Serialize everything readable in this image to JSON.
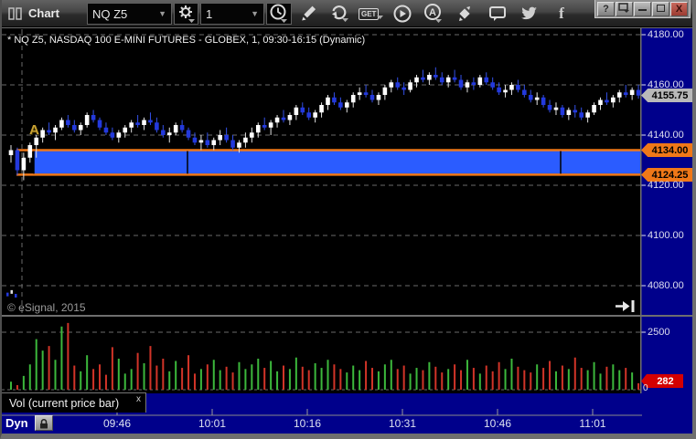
{
  "window": {
    "title": "Chart",
    "help_label": "?",
    "controls": [
      "help",
      "popout",
      "minimize",
      "maximize",
      "close"
    ]
  },
  "toolbar": {
    "symbol_value": "NQ Z5",
    "interval_value": "1",
    "get_label": "GET",
    "icons": [
      "symbol-settings-gear-icon",
      "interval-clock-icon",
      "pencil-draw-icon",
      "share-refresh-icon",
      "get-icon",
      "play-icon",
      "a-circle-icon",
      "trade-diamond-icon",
      "chat-icon",
      "twitter-icon",
      "facebook-icon"
    ]
  },
  "chart": {
    "header": "* NQ Z5, NASDAQ 100 E-MINI FUTURES - GLOBEX, 1, 09:30-16:15 (Dynamic)",
    "watermark": "© eSignal, 2015",
    "annotation": "A"
  },
  "volume_tab": {
    "label": "Vol (current price bar)",
    "close_label": "x"
  },
  "time_axis": {
    "mode_label": "Dyn",
    "labels": [
      "09:46",
      "10:01",
      "10:16",
      "10:31",
      "10:46",
      "11:01"
    ]
  },
  "chart_data": {
    "type": "candlestick",
    "symbol": "NQ Z5",
    "description": "NASDAQ 100 E-MINI FUTURES - GLOBEX",
    "interval_minutes": 1,
    "session": "09:30-16:15 (Dynamic)",
    "price_axis": {
      "ticks": [
        4180,
        4160,
        4140,
        4120,
        4100,
        4080
      ],
      "current_price": "4155.75",
      "zone_top_label": "4134.00",
      "zone_bottom_label": "4124.25"
    },
    "volume_axis": {
      "ticks": [
        2500
      ],
      "zero_label": "0",
      "current_volume": "282"
    },
    "zone": {
      "top": 4134.0,
      "bottom": 4124.25
    },
    "prior_session_marks": [
      4076.5,
      4077.5,
      4076.0
    ],
    "candles": [
      [
        4132,
        4136,
        4129,
        4134
      ],
      [
        4134,
        4135,
        4124,
        4126
      ],
      [
        4126,
        4133,
        4122,
        4131
      ],
      [
        4131,
        4137,
        4129,
        4136
      ],
      [
        4136,
        4140,
        4131,
        4139
      ],
      [
        4139,
        4143,
        4137,
        4142
      ],
      [
        4142,
        4145,
        4140,
        4141
      ],
      [
        4141,
        4144,
        4138,
        4143
      ],
      [
        4143,
        4147,
        4142,
        4146
      ],
      [
        4146,
        4148,
        4143,
        4144
      ],
      [
        4144,
        4146,
        4141,
        4142
      ],
      [
        4142,
        4145,
        4140,
        4144
      ],
      [
        4144,
        4149,
        4143,
        4148
      ],
      [
        4148,
        4150,
        4145,
        4146
      ],
      [
        4146,
        4147,
        4142,
        4143
      ],
      [
        4143,
        4145,
        4140,
        4141
      ],
      [
        4141,
        4143,
        4138,
        4139
      ],
      [
        4139,
        4142,
        4137,
        4141
      ],
      [
        4141,
        4144,
        4139,
        4143
      ],
      [
        4143,
        4146,
        4141,
        4145
      ],
      [
        4145,
        4148,
        4143,
        4144
      ],
      [
        4144,
        4147,
        4142,
        4146
      ],
      [
        4146,
        4149,
        4144,
        4145
      ],
      [
        4145,
        4147,
        4141,
        4142
      ],
      [
        4142,
        4144,
        4139,
        4140
      ],
      [
        4140,
        4143,
        4137,
        4141
      ],
      [
        4141,
        4145,
        4140,
        4144
      ],
      [
        4144,
        4146,
        4141,
        4142
      ],
      [
        4142,
        4143,
        4138,
        4139
      ],
      [
        4139,
        4141,
        4136,
        4137
      ],
      [
        4137,
        4140,
        4134,
        4138
      ],
      [
        4138,
        4141,
        4135,
        4136
      ],
      [
        4136,
        4139,
        4134,
        4138
      ],
      [
        4138,
        4142,
        4136,
        4140
      ],
      [
        4140,
        4143,
        4137,
        4138
      ],
      [
        4138,
        4140,
        4134,
        4135
      ],
      [
        4135,
        4138,
        4133,
        4137
      ],
      [
        4137,
        4141,
        4135,
        4139
      ],
      [
        4139,
        4143,
        4137,
        4141
      ],
      [
        4141,
        4145,
        4139,
        4144
      ],
      [
        4144,
        4147,
        4142,
        4143
      ],
      [
        4143,
        4146,
        4140,
        4145
      ],
      [
        4145,
        4148,
        4143,
        4147
      ],
      [
        4147,
        4150,
        4145,
        4146
      ],
      [
        4146,
        4149,
        4144,
        4148
      ],
      [
        4148,
        4152,
        4146,
        4151
      ],
      [
        4151,
        4153,
        4148,
        4149
      ],
      [
        4149,
        4151,
        4146,
        4147
      ],
      [
        4147,
        4150,
        4145,
        4149
      ],
      [
        4149,
        4153,
        4147,
        4152
      ],
      [
        4152,
        4156,
        4150,
        4155
      ],
      [
        4155,
        4157,
        4152,
        4153
      ],
      [
        4153,
        4155,
        4150,
        4151
      ],
      [
        4151,
        4154,
        4149,
        4153
      ],
      [
        4153,
        4157,
        4151,
        4156
      ],
      [
        4156,
        4159,
        4154,
        4157
      ],
      [
        4157,
        4160,
        4155,
        4156
      ],
      [
        4156,
        4158,
        4153,
        4154
      ],
      [
        4154,
        4157,
        4152,
        4156
      ],
      [
        4156,
        4160,
        4154,
        4159
      ],
      [
        4159,
        4162,
        4157,
        4161
      ],
      [
        4161,
        4163,
        4158,
        4159
      ],
      [
        4159,
        4161,
        4156,
        4158
      ],
      [
        4158,
        4162,
        4157,
        4161
      ],
      [
        4161,
        4164,
        4159,
        4163
      ],
      [
        4163,
        4166,
        4161,
        4162
      ],
      [
        4162,
        4165,
        4160,
        4164
      ],
      [
        4164,
        4167,
        4162,
        4163
      ],
      [
        4163,
        4165,
        4160,
        4161
      ],
      [
        4161,
        4164,
        4159,
        4163
      ],
      [
        4163,
        4166,
        4161,
        4162
      ],
      [
        4162,
        4164,
        4158,
        4159
      ],
      [
        4159,
        4162,
        4157,
        4161
      ],
      [
        4161,
        4163,
        4158,
        4160
      ],
      [
        4160,
        4164,
        4159,
        4163
      ],
      [
        4163,
        4165,
        4160,
        4161
      ],
      [
        4161,
        4163,
        4158,
        4159
      ],
      [
        4159,
        4161,
        4156,
        4157
      ],
      [
        4157,
        4160,
        4155,
        4158
      ],
      [
        4158,
        4161,
        4156,
        4160
      ],
      [
        4160,
        4162,
        4157,
        4158
      ],
      [
        4158,
        4160,
        4155,
        4156
      ],
      [
        4156,
        4158,
        4153,
        4154
      ],
      [
        4154,
        4157,
        4152,
        4155
      ],
      [
        4155,
        4156,
        4151,
        4152
      ],
      [
        4152,
        4154,
        4149,
        4150
      ],
      [
        4150,
        4153,
        4148,
        4151
      ],
      [
        4151,
        4152,
        4147,
        4148
      ],
      [
        4148,
        4151,
        4146,
        4150
      ],
      [
        4150,
        4152,
        4147,
        4149
      ],
      [
        4149,
        4151,
        4146,
        4147
      ],
      [
        4147,
        4150,
        4145,
        4149
      ],
      [
        4149,
        4153,
        4148,
        4152
      ],
      [
        4152,
        4155,
        4150,
        4154
      ],
      [
        4154,
        4157,
        4152,
        4153
      ],
      [
        4153,
        4156,
        4151,
        4155
      ],
      [
        4155,
        4158,
        4153,
        4157
      ],
      [
        4157,
        4160,
        4155,
        4156
      ],
      [
        4156,
        4159,
        4154,
        4158
      ],
      [
        4158,
        4160,
        4154.5,
        4155.75
      ]
    ],
    "volumes": [
      350,
      200,
      600,
      1100,
      2200,
      1700,
      1900,
      1300,
      2750,
      2900,
      1050,
      800,
      1500,
      900,
      1100,
      650,
      1850,
      1350,
      700,
      900,
      1600,
      1150,
      1900,
      1050,
      1350,
      800,
      1250,
      950,
      1500,
      700,
      900,
      1100,
      1300,
      850,
      1000,
      750,
      1200,
      900,
      1100,
      1350,
      950,
      1250,
      800,
      1050,
      900,
      1400,
      1000,
      850,
      1150,
      950,
      1300,
      1100,
      900,
      750,
      1050,
      850,
      1250,
      950,
      800,
      1100,
      1300,
      900,
      1050,
      700,
      950,
      850,
      1200,
      1000,
      750,
      900,
      1100,
      850,
      1300,
      950,
      700,
      1050,
      800,
      1200,
      900,
      1350,
      1000,
      850,
      750,
      1100,
      950,
      1250,
      800,
      1050,
      900,
      1400,
      950,
      850,
      1200,
      700,
      1000,
      1100,
      850,
      950,
      750,
      282
    ],
    "colors": {
      "axis_bg": "#00008b",
      "grid": "#6a6a6a",
      "up": "#ffffff",
      "down": "#2339dd",
      "zone_fill": "#2b5cff",
      "zone_border": "#f07818",
      "vol_up": "#3cb83c",
      "vol_down": "#d23428",
      "tag_current_bg": "#b9b9b9",
      "tag_zone_bg": "#f07818",
      "tag_vol_bg": "#d40000",
      "axis_text": "#dfdfef"
    }
  }
}
